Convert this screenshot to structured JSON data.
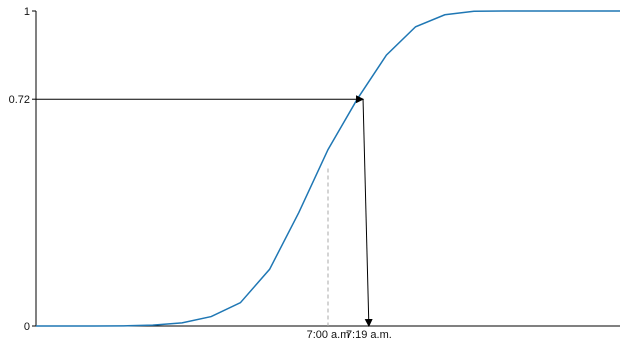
{
  "chart_data": {
    "type": "line",
    "title": "",
    "xlabel": "",
    "ylabel": "",
    "xlim": [
      0,
      100
    ],
    "ylim": [
      0,
      1
    ],
    "grid": false,
    "series": [
      {
        "color": "#1f77b4",
        "x": [
          0,
          5,
          10,
          15,
          20,
          25,
          30,
          35,
          40,
          45,
          50,
          55,
          60,
          65,
          70,
          75,
          80,
          85,
          90,
          95,
          100
        ],
        "y": [
          0,
          0,
          0,
          0.0005,
          0.0026,
          0.01,
          0.03,
          0.074,
          0.18,
          0.36,
          0.56,
          0.72,
          0.86,
          0.95,
          0.988,
          0.999,
          1,
          1,
          1,
          1,
          1
        ]
      }
    ],
    "y_ticks": [
      {
        "value": 0,
        "label": "0"
      },
      {
        "value": 0.72,
        "label": "0.72"
      },
      {
        "value": 1,
        "label": "1"
      }
    ],
    "x_ticks": [
      {
        "value": 50,
        "label": "7:00 a.m"
      },
      {
        "value": 57,
        "label": "7:19 a.m."
      }
    ],
    "annotations": {
      "lookup_value": 0.72,
      "lookup_x": 56,
      "dashed_drop_x": 50,
      "dashed_drop_y": 0.5
    }
  }
}
